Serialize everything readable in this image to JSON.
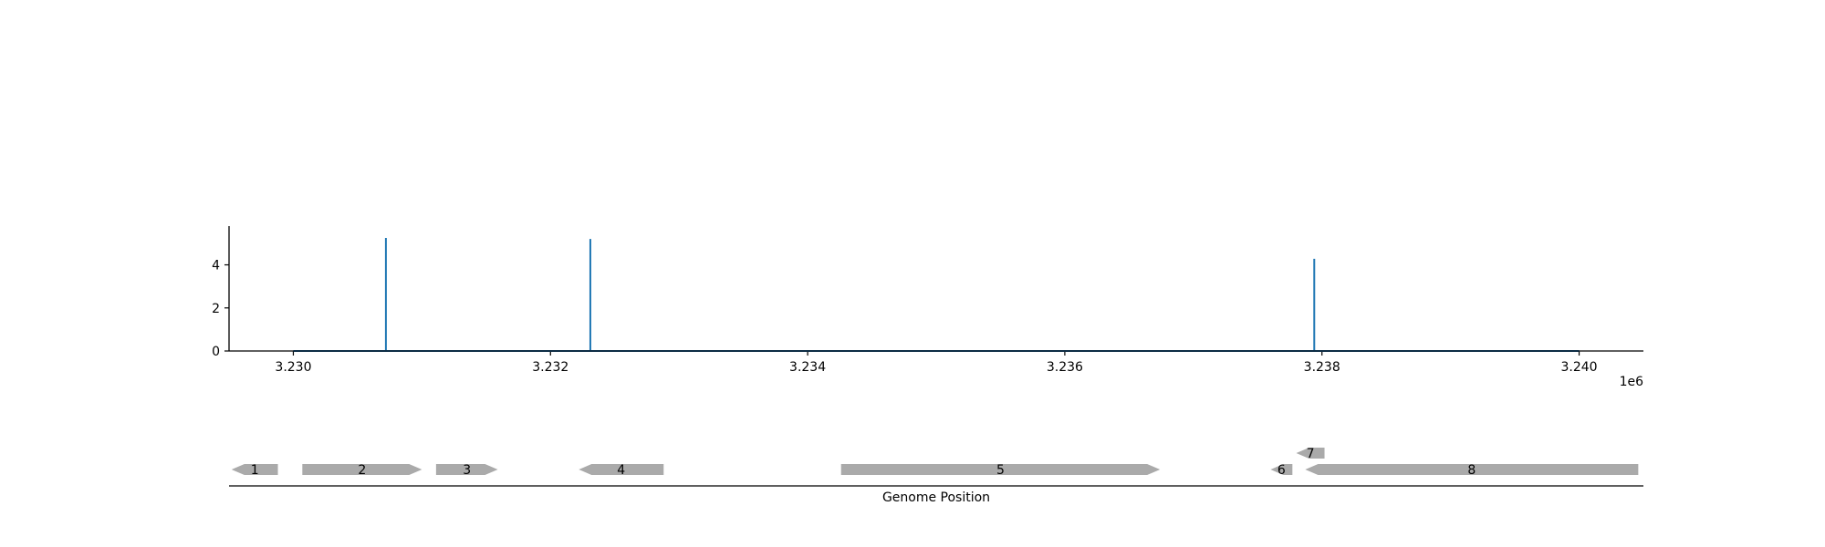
{
  "colors": {
    "signal": "#1f77b4",
    "gene": "#aaaaaa",
    "axis": "#000000",
    "background": "#ffffff"
  },
  "chart_data": [
    {
      "type": "line",
      "x": [
        3230000,
        3230720,
        3232310,
        3237940,
        3240000
      ],
      "y": [
        0,
        5.25,
        5.2,
        4.28,
        0
      ],
      "baseline": 0,
      "xlim": [
        3229500,
        3240500
      ],
      "ylim": [
        0,
        5.8
      ],
      "yticks": [
        0,
        2,
        4
      ],
      "ytick_labels": [
        "0",
        "2",
        "4"
      ],
      "xticks": [
        3230000,
        3232000,
        3234000,
        3236000,
        3238000,
        3240000
      ],
      "xtick_labels": [
        "3.230",
        "3.232",
        "3.234",
        "3.236",
        "3.238",
        "3.240"
      ],
      "x_offset_label": "1e6",
      "grid": false,
      "spines": [
        "left",
        "bottom"
      ]
    },
    {
      "type": "gene-track",
      "xlabel": "Genome Position",
      "xlim": [
        3229500,
        3240500
      ],
      "genes": [
        {
          "label": "1",
          "start": 3229520,
          "end": 3229880,
          "strand": "-",
          "row": 0
        },
        {
          "label": "2",
          "start": 3230070,
          "end": 3231000,
          "strand": "+",
          "row": 0
        },
        {
          "label": "3",
          "start": 3231110,
          "end": 3231590,
          "strand": "+",
          "row": 0
        },
        {
          "label": "4",
          "start": 3232220,
          "end": 3232880,
          "strand": "-",
          "row": 0
        },
        {
          "label": "5",
          "start": 3234260,
          "end": 3236740,
          "strand": "+",
          "row": 0
        },
        {
          "label": "6",
          "start": 3237600,
          "end": 3237770,
          "strand": "-",
          "row": 0
        },
        {
          "label": "7",
          "start": 3237800,
          "end": 3238020,
          "strand": "-",
          "row": 1
        },
        {
          "label": "8",
          "start": 3237870,
          "end": 3240460,
          "strand": "-",
          "row": 0
        }
      ]
    }
  ]
}
